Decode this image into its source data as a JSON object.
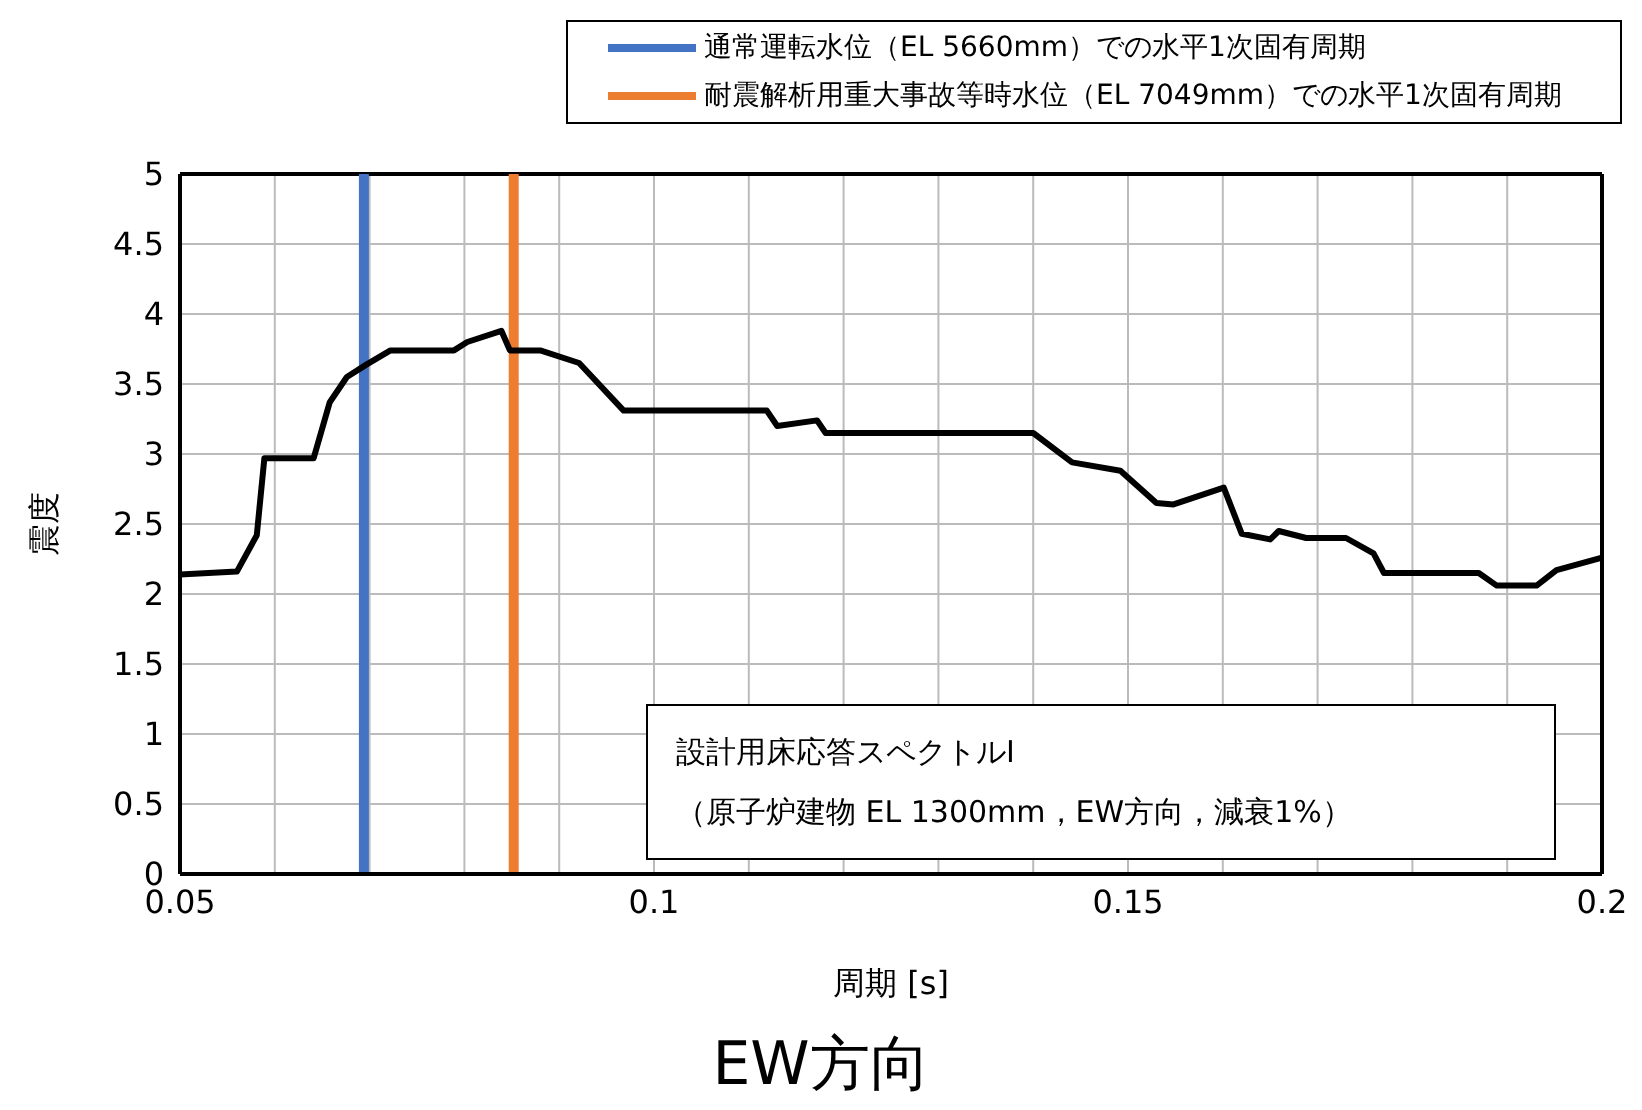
{
  "chart_data": {
    "type": "line",
    "title": "EW方向",
    "xlabel": "周期 [s]",
    "ylabel": "震度",
    "xlim": [
      0.05,
      0.2
    ],
    "xticks": [
      0.05,
      {
        "value": 0.06,
        "label": null
      },
      {
        "value": 0.07,
        "label": null
      },
      {
        "value": 0.08,
        "label": null
      },
      {
        "value": 0.09,
        "label": null
      },
      {
        "value": 0.1,
        "label": "0.1"
      },
      {
        "value": 0.11,
        "label": null
      },
      {
        "value": 0.12,
        "label": null
      },
      {
        "value": 0.13,
        "label": null
      },
      {
        "value": 0.14,
        "label": null
      },
      0.15,
      {
        "value": 0.16,
        "label": null
      },
      {
        "value": 0.17,
        "label": null
      },
      {
        "value": 0.18,
        "label": null
      },
      {
        "value": 0.19,
        "label": null
      },
      {
        "value": 0.2,
        "label": "0.2"
      }
    ],
    "ylim": [
      0,
      5
    ],
    "yticks": [
      0,
      0.5,
      1,
      1.5,
      2,
      2.5,
      3,
      3.5,
      4,
      4.5,
      5
    ],
    "grid": true,
    "legend": "top",
    "marker": "none",
    "line_style": "solid",
    "series": [
      {
        "color": "#000000",
        "x": [
          0.05,
          0.056,
          0.0581,
          0.0589,
          0.0641,
          0.0658,
          0.0676,
          0.0697,
          0.0722,
          0.0789,
          0.0803,
          0.0839,
          0.0848,
          0.088,
          0.0921,
          0.0968,
          0.1119,
          0.113,
          0.1172,
          0.1181,
          0.14,
          0.1441,
          0.1492,
          0.153,
          0.1548,
          0.1601,
          0.162,
          0.165,
          0.1659,
          0.1688,
          0.173,
          0.1759,
          0.177,
          0.187,
          0.1889,
          0.1931,
          0.1952,
          0.2
        ],
        "values": [
          2.14,
          2.16,
          2.42,
          2.97,
          2.97,
          3.37,
          3.55,
          3.64,
          3.74,
          3.74,
          3.8,
          3.88,
          3.74,
          3.74,
          3.65,
          3.31,
          3.31,
          3.2,
          3.24,
          3.15,
          3.15,
          2.94,
          2.88,
          2.65,
          2.64,
          2.76,
          2.43,
          2.39,
          2.45,
          2.4,
          2.4,
          2.29,
          2.15,
          2.15,
          2.06,
          2.06,
          2.17,
          2.26
        ]
      }
    ],
    "ref_lines": [
      {
        "axis": "x",
        "value": 0.0694,
        "label": "通常運転水位（EL 5660mm）での水平1次固有周期",
        "color": "#4472c4"
      },
      {
        "axis": "x",
        "value": 0.0852,
        "label": "耐震解析用重大事故等時水位（EL 7049mm）での水平1次固有周期",
        "color": "#ed7d31"
      }
    ],
    "annotations": [
      "設計用床応答スペクトルⅠ",
      "（原子炉建物 EL 1300mm，EW方向，減衰1%）"
    ]
  }
}
